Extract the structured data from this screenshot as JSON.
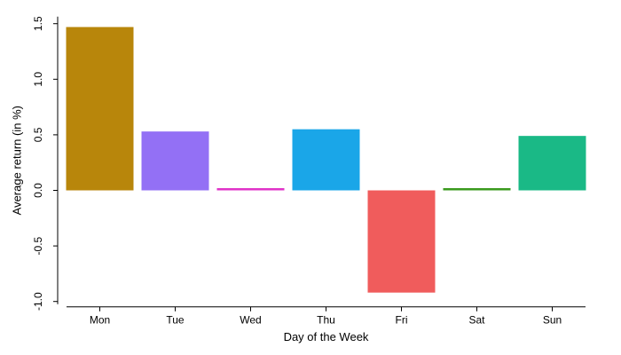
{
  "chart_data": {
    "type": "bar",
    "title": "",
    "xlabel": "Day of the Week",
    "ylabel": "Average return (in %)",
    "categories": [
      "Mon",
      "Tue",
      "Wed",
      "Thu",
      "Fri",
      "Sat",
      "Sun"
    ],
    "values": [
      1.47,
      0.53,
      0.02,
      0.55,
      -0.92,
      0.02,
      0.49
    ],
    "colors": [
      "#B8860B",
      "#9370F5",
      "#E033C8",
      "#1AA6E8",
      "#F05C5C",
      "#3A9A1E",
      "#1AB986"
    ],
    "ylim": [
      -1.0,
      1.5
    ],
    "yticks": [
      -1.0,
      -0.5,
      0.0,
      0.5,
      1.0,
      1.5
    ],
    "ytick_labels": [
      "-1.0",
      "-0.5",
      "0.0",
      "0.5",
      "1.0",
      "1.5"
    ],
    "grid": false,
    "legend": "none"
  }
}
